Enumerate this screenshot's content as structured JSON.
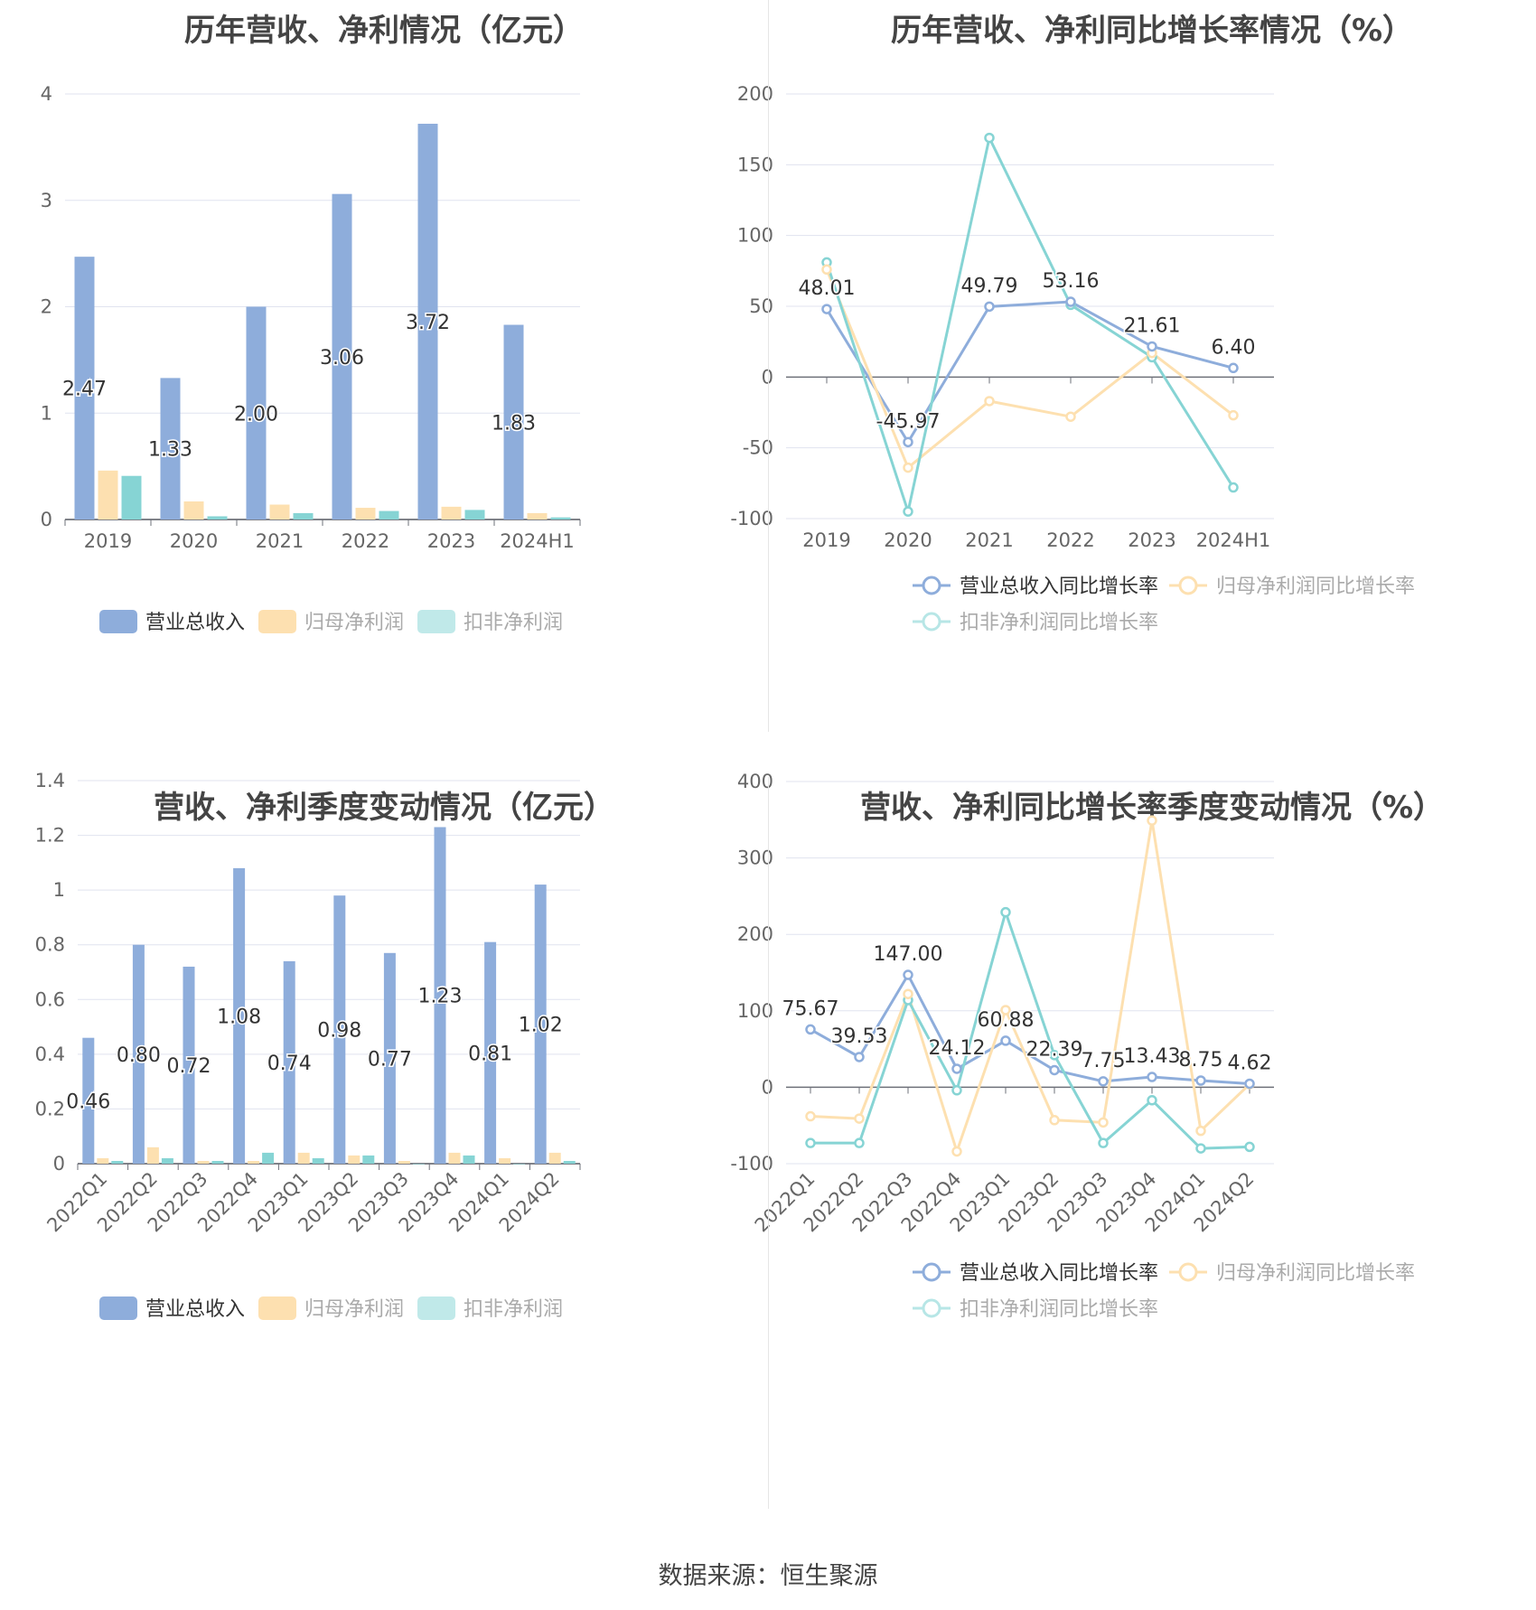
{
  "footer": "数据来源：恒生聚源",
  "colors": {
    "revenue": "#8eaddb",
    "profit": "#fde0b0",
    "deducted": "#86d4d4",
    "grid": "#e0e3ef",
    "text": "#555"
  },
  "legend_bar": [
    "营业总收入",
    "归母净利润",
    "扣非净利润"
  ],
  "legend_line": [
    "营业总收入同比增长率",
    "归母净利润同比增长率",
    "扣非净利润同比增长率"
  ],
  "chart_data": [
    {
      "type": "bar",
      "title": "历年营收、净利情况（亿元）",
      "categories": [
        "2019",
        "2020",
        "2021",
        "2022",
        "2023",
        "2024H1"
      ],
      "ylim": [
        0,
        4
      ],
      "yticks": [
        "0",
        "1",
        "2",
        "3",
        "4"
      ],
      "series": [
        {
          "name": "营业总收入",
          "values": [
            2.47,
            1.33,
            2.0,
            3.06,
            3.72,
            1.83
          ],
          "labels": [
            "2.47",
            "1.33",
            "2.00",
            "3.06",
            "3.72",
            "1.83"
          ]
        },
        {
          "name": "归母净利润",
          "values": [
            0.46,
            0.17,
            0.14,
            0.11,
            0.12,
            0.06
          ]
        },
        {
          "name": "扣非净利润",
          "values": [
            0.41,
            0.03,
            0.06,
            0.08,
            0.09,
            0.02
          ]
        }
      ],
      "legend": "bottom"
    },
    {
      "type": "line",
      "title": "历年营收、净利同比增长率情况（%）",
      "categories": [
        "2019",
        "2020",
        "2021",
        "2022",
        "2023",
        "2024H1"
      ],
      "ylim": [
        -100,
        200
      ],
      "yticks": [
        "-100",
        "-50",
        "0",
        "50",
        "100",
        "150",
        "200"
      ],
      "series": [
        {
          "name": "营业总收入同比增长率",
          "values": [
            48.01,
            -45.97,
            49.79,
            53.16,
            21.61,
            6.4
          ],
          "labels": [
            "48.01",
            "-45.97",
            "49.79",
            "53.16",
            "21.61",
            "6.40"
          ]
        },
        {
          "name": "归母净利润同比增长率",
          "values": [
            76,
            -64,
            -17,
            -28,
            17,
            -27
          ]
        },
        {
          "name": "扣非净利润同比增长率",
          "values": [
            81,
            -95,
            169,
            51,
            14,
            -78
          ]
        }
      ],
      "legend": "bottom"
    },
    {
      "type": "bar",
      "title": "营收、净利季度变动情况（亿元）",
      "categories": [
        "2022Q1",
        "2022Q2",
        "2022Q3",
        "2022Q4",
        "2023Q1",
        "2023Q2",
        "2023Q3",
        "2023Q4",
        "2024Q1",
        "2024Q2"
      ],
      "ylim": [
        0,
        1.4
      ],
      "yticks": [
        "0",
        "0.2",
        "0.4",
        "0.6",
        "0.8",
        "1",
        "1.2",
        "1.4"
      ],
      "series": [
        {
          "name": "营业总收入",
          "values": [
            0.46,
            0.8,
            0.72,
            1.08,
            0.74,
            0.98,
            0.77,
            1.23,
            0.81,
            1.02
          ],
          "labels": [
            "0.46",
            "0.80",
            "0.72",
            "1.08",
            "0.74",
            "0.98",
            "0.77",
            "1.23",
            "0.81",
            "1.02"
          ]
        },
        {
          "name": "归母净利润",
          "values": [
            0.02,
            0.06,
            0.01,
            0.01,
            0.04,
            0.03,
            0.01,
            0.04,
            0.02,
            0.04
          ]
        },
        {
          "name": "扣非净利润",
          "values": [
            0.01,
            0.02,
            0.01,
            0.04,
            0.02,
            0.03,
            0.0,
            0.03,
            0.0,
            0.01
          ]
        }
      ],
      "legend": "bottom"
    },
    {
      "type": "line",
      "title": "营收、净利同比增长率季度变动情况（%）",
      "categories": [
        "2022Q1",
        "2022Q2",
        "2022Q3",
        "2022Q4",
        "2023Q1",
        "2023Q2",
        "2023Q3",
        "2023Q4",
        "2024Q1",
        "2024Q2"
      ],
      "ylim": [
        -100,
        400
      ],
      "yticks": [
        "-100",
        "0",
        "100",
        "200",
        "300",
        "400"
      ],
      "series": [
        {
          "name": "营业总收入同比增长率",
          "values": [
            75.67,
            39.53,
            147.0,
            24.12,
            60.88,
            22.39,
            7.75,
            13.43,
            8.75,
            4.62
          ],
          "labels": [
            "75.67",
            "39.53",
            "147.00",
            "24.12",
            "60.88",
            "22.39",
            "7.75",
            "13.43",
            "8.75",
            "4.62"
          ]
        },
        {
          "name": "归母净利润同比增长率",
          "values": [
            -38,
            -41,
            122,
            -84,
            101,
            -43,
            -46,
            349,
            -57,
            4
          ]
        },
        {
          "name": "扣非净利润同比增长率",
          "values": [
            -73,
            -73,
            114,
            -4,
            229,
            42,
            -73,
            -17,
            -80,
            -78
          ]
        }
      ],
      "legend": "bottom"
    }
  ]
}
